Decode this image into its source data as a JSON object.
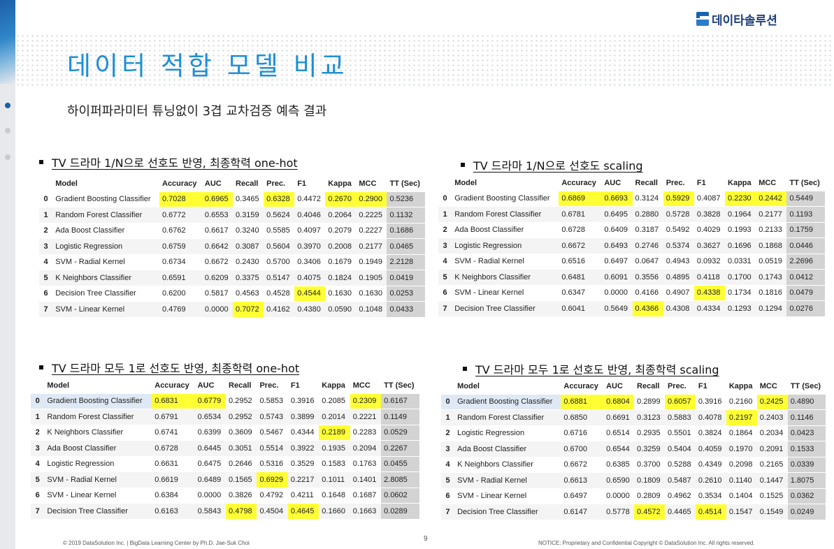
{
  "brand": {
    "name": "데이타솔루션",
    "color": "#1d3f7a"
  },
  "title": "데이터 적합 모델 비교",
  "subtitle": "하이퍼파라미터 튜닝없이 3겹 교차검증 예측 결과",
  "colors": {
    "accent": "#1e8fd6",
    "highlight": "#ffff33",
    "tt_column": "#d3d3d3"
  },
  "headers": [
    "Model",
    "Accuracy",
    "AUC",
    "Recall",
    "Prec.",
    "F1",
    "Kappa",
    "MCC",
    "TT (Sec)"
  ],
  "tables": [
    {
      "title": "TV 드라마 1/N으로 선호도 반영, 최종학력 one-hot",
      "rows": [
        {
          "idx": "0",
          "model": "Gradient Boosting Classifier",
          "values": [
            "0.7028",
            "0.6965",
            "0.3465",
            "0.6328",
            "0.4472",
            "0.2670",
            "0.2900",
            "0.5236"
          ],
          "highlight": [
            0,
            1,
            3,
            5,
            6
          ]
        },
        {
          "idx": "1",
          "model": "Random Forest Classifier",
          "values": [
            "0.6772",
            "0.6553",
            "0.3159",
            "0.5624",
            "0.4046",
            "0.2064",
            "0.2225",
            "0.1132"
          ],
          "highlight": []
        },
        {
          "idx": "2",
          "model": "Ada Boost Classifier",
          "values": [
            "0.6762",
            "0.6617",
            "0.3240",
            "0.5585",
            "0.4097",
            "0.2079",
            "0.2227",
            "0.1686"
          ],
          "highlight": []
        },
        {
          "idx": "3",
          "model": "Logistic Regression",
          "values": [
            "0.6759",
            "0.6642",
            "0.3087",
            "0.5604",
            "0.3970",
            "0.2008",
            "0.2177",
            "0.0465"
          ],
          "highlight": []
        },
        {
          "idx": "4",
          "model": "SVM - Radial Kernel",
          "values": [
            "0.6734",
            "0.6672",
            "0.2430",
            "0.5700",
            "0.3406",
            "0.1679",
            "0.1949",
            "2.2128"
          ],
          "highlight": []
        },
        {
          "idx": "5",
          "model": "K Neighbors Classifier",
          "values": [
            "0.6591",
            "0.6209",
            "0.3375",
            "0.5147",
            "0.4075",
            "0.1824",
            "0.1905",
            "0.0419"
          ],
          "highlight": []
        },
        {
          "idx": "6",
          "model": "Decision Tree Classifier",
          "values": [
            "0.6200",
            "0.5817",
            "0.4563",
            "0.4528",
            "0.4544",
            "0.1630",
            "0.1630",
            "0.0253"
          ],
          "highlight": [
            4
          ]
        },
        {
          "idx": "7",
          "model": "SVM - Linear Kernel",
          "values": [
            "0.4769",
            "0.0000",
            "0.7072",
            "0.4162",
            "0.4380",
            "0.0590",
            "0.1048",
            "0.0433"
          ],
          "highlight": [
            2
          ]
        }
      ]
    },
    {
      "title": "TV 드라마 1/N으로 선호도 scaling",
      "rows": [
        {
          "idx": "0",
          "model": "Gradient Boosting Classifier",
          "values": [
            "0.6869",
            "0.6693",
            "0.3124",
            "0.5929",
            "0.4087",
            "0.2230",
            "0.2442",
            "0.5449"
          ],
          "highlight": [
            0,
            1,
            3,
            5,
            6
          ]
        },
        {
          "idx": "1",
          "model": "Random Forest Classifier",
          "values": [
            "0.6781",
            "0.6495",
            "0.2880",
            "0.5728",
            "0.3828",
            "0.1964",
            "0.2177",
            "0.1193"
          ],
          "highlight": []
        },
        {
          "idx": "2",
          "model": "Ada Boost Classifier",
          "values": [
            "0.6728",
            "0.6409",
            "0.3187",
            "0.5492",
            "0.4029",
            "0.1993",
            "0.2133",
            "0.1759"
          ],
          "highlight": []
        },
        {
          "idx": "3",
          "model": "Logistic Regression",
          "values": [
            "0.6672",
            "0.6493",
            "0.2746",
            "0.5374",
            "0.3627",
            "0.1696",
            "0.1868",
            "0.0446"
          ],
          "highlight": []
        },
        {
          "idx": "4",
          "model": "SVM - Radial Kernel",
          "values": [
            "0.6516",
            "0.6497",
            "0.0647",
            "0.4943",
            "0.0932",
            "0.0331",
            "0.0519",
            "2.2696"
          ],
          "highlight": []
        },
        {
          "idx": "5",
          "model": "K Neighbors Classifier",
          "values": [
            "0.6481",
            "0.6091",
            "0.3556",
            "0.4895",
            "0.4118",
            "0.1700",
            "0.1743",
            "0.0412"
          ],
          "highlight": []
        },
        {
          "idx": "6",
          "model": "SVM - Linear Kernel",
          "values": [
            "0.6347",
            "0.0000",
            "0.4166",
            "0.4907",
            "0.4338",
            "0.1734",
            "0.1816",
            "0.0479"
          ],
          "highlight": [
            4
          ]
        },
        {
          "idx": "7",
          "model": "Decision Tree Classifier",
          "values": [
            "0.6041",
            "0.5649",
            "0.4366",
            "0.4308",
            "0.4334",
            "0.1293",
            "0.1294",
            "0.0276"
          ],
          "highlight": [
            2
          ]
        }
      ]
    },
    {
      "title": "TV 드라마 모두 1로 선호도 반영, 최종학력 one-hot",
      "rows": [
        {
          "idx": "0",
          "model": "Gradient Boosting Classifier",
          "values": [
            "0.6831",
            "0.6779",
            "0.2952",
            "0.5853",
            "0.3916",
            "0.2085",
            "0.2309",
            "0.6167"
          ],
          "highlight": [
            0,
            1,
            6
          ],
          "selected": true
        },
        {
          "idx": "1",
          "model": "Random Forest Classifier",
          "values": [
            "0.6791",
            "0.6534",
            "0.2952",
            "0.5743",
            "0.3899",
            "0.2014",
            "0.2221",
            "0.1149"
          ],
          "highlight": []
        },
        {
          "idx": "2",
          "model": "K Neighbors Classifier",
          "values": [
            "0.6741",
            "0.6399",
            "0.3609",
            "0.5467",
            "0.4344",
            "0.2189",
            "0.2283",
            "0.0529"
          ],
          "highlight": [
            5
          ]
        },
        {
          "idx": "3",
          "model": "Ada Boost Classifier",
          "values": [
            "0.6728",
            "0.6445",
            "0.3051",
            "0.5514",
            "0.3922",
            "0.1935",
            "0.2094",
            "0.2267"
          ],
          "highlight": []
        },
        {
          "idx": "4",
          "model": "Logistic Regression",
          "values": [
            "0.6631",
            "0.6475",
            "0.2646",
            "0.5316",
            "0.3529",
            "0.1583",
            "0.1763",
            "0.0455"
          ],
          "highlight": []
        },
        {
          "idx": "5",
          "model": "SVM - Radial Kernel",
          "values": [
            "0.6619",
            "0.6489",
            "0.1565",
            "0.6929",
            "0.2217",
            "0.1011",
            "0.1401",
            "2.8085"
          ],
          "highlight": [
            3
          ]
        },
        {
          "idx": "6",
          "model": "SVM - Linear Kernel",
          "values": [
            "0.6384",
            "0.0000",
            "0.3826",
            "0.4792",
            "0.4211",
            "0.1648",
            "0.1687",
            "0.0602"
          ],
          "highlight": []
        },
        {
          "idx": "7",
          "model": "Decision Tree Classifier",
          "values": [
            "0.6163",
            "0.5843",
            "0.4798",
            "0.4504",
            "0.4645",
            "0.1660",
            "0.1663",
            "0.0289"
          ],
          "highlight": [
            2,
            4
          ]
        }
      ]
    },
    {
      "title": "TV 드라마 모두 1로 선호도 반영, 최종학력 scaling",
      "rows": [
        {
          "idx": "0",
          "model": "Gradient Boosting Classifier",
          "values": [
            "0.6881",
            "0.6804",
            "0.2899",
            "0.6057",
            "0.3916",
            "0.2160",
            "0.2425",
            "0.4890"
          ],
          "highlight": [
            0,
            1,
            3,
            6
          ],
          "selected": true
        },
        {
          "idx": "1",
          "model": "Random Forest Classifier",
          "values": [
            "0.6850",
            "0.6691",
            "0.3123",
            "0.5883",
            "0.4078",
            "0.2197",
            "0.2403",
            "0.1146"
          ],
          "highlight": [
            5
          ]
        },
        {
          "idx": "2",
          "model": "Logistic Regression",
          "values": [
            "0.6716",
            "0.6514",
            "0.2935",
            "0.5501",
            "0.3824",
            "0.1864",
            "0.2034",
            "0.0423"
          ],
          "highlight": []
        },
        {
          "idx": "3",
          "model": "Ada Boost Classifier",
          "values": [
            "0.6700",
            "0.6544",
            "0.3259",
            "0.5404",
            "0.4059",
            "0.1970",
            "0.2091",
            "0.1533"
          ],
          "highlight": []
        },
        {
          "idx": "4",
          "model": "K Neighbors Classifier",
          "values": [
            "0.6672",
            "0.6385",
            "0.3700",
            "0.5288",
            "0.4349",
            "0.2098",
            "0.2165",
            "0.0339"
          ],
          "highlight": []
        },
        {
          "idx": "5",
          "model": "SVM - Radial Kernel",
          "values": [
            "0.6613",
            "0.6590",
            "0.1809",
            "0.5487",
            "0.2610",
            "0.1140",
            "0.1447",
            "1.8075"
          ],
          "highlight": []
        },
        {
          "idx": "6",
          "model": "SVM - Linear Kernel",
          "values": [
            "0.6497",
            "0.0000",
            "0.2809",
            "0.4962",
            "0.3534",
            "0.1404",
            "0.1525",
            "0.0362"
          ],
          "highlight": []
        },
        {
          "idx": "7",
          "model": "Decision Tree Classifier",
          "values": [
            "0.6147",
            "0.5778",
            "0.4572",
            "0.4465",
            "0.4514",
            "0.1547",
            "0.1549",
            "0.0249"
          ],
          "highlight": [
            2,
            4
          ]
        }
      ]
    }
  ],
  "footer": {
    "left": "© 2019 DataSolution Inc. | BigData Learning Center by  Ph.D. Jae-Suk Choi",
    "page": "9",
    "right": "NOTICE: Proprietary and Confidential Copyright © DataSolution Inc. All rights reserved."
  },
  "nav_dots": [
    {
      "name": "nav-dot-1",
      "color": "#1d5fa8"
    },
    {
      "name": "nav-dot-2",
      "color": "#c8cbcf"
    },
    {
      "name": "nav-dot-3",
      "color": "#c8cbcf"
    }
  ]
}
